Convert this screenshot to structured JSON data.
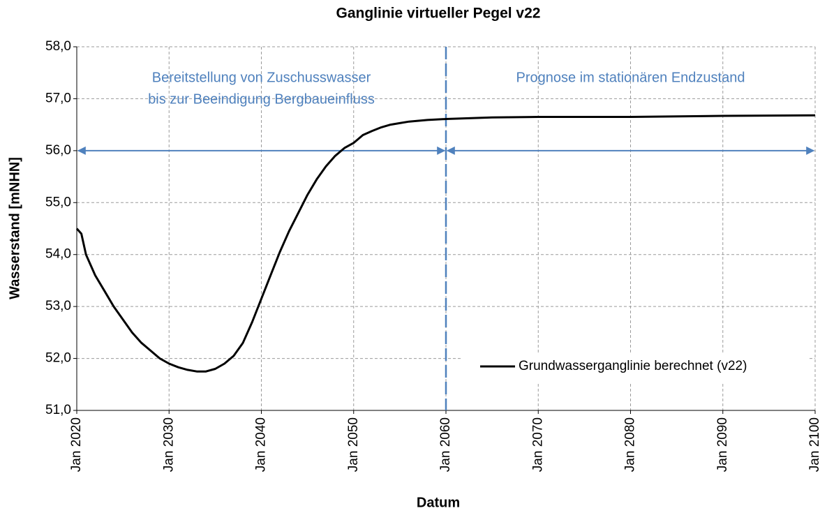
{
  "chart_data": {
    "type": "line",
    "title": "Ganglinie virtueller Pegel v22",
    "xlabel": "Datum",
    "ylabel": "Wasserstand [mNHN]",
    "x": [
      2020,
      2020.5,
      2021,
      2022,
      2023,
      2024,
      2025,
      2026,
      2027,
      2028,
      2029,
      2030,
      2031,
      2032,
      2033,
      2034,
      2035,
      2036,
      2037,
      2038,
      2039,
      2040,
      2041,
      2042,
      2043,
      2044,
      2045,
      2046,
      2047,
      2048,
      2049,
      2050,
      2051,
      2052,
      2053,
      2054,
      2055,
      2056,
      2058,
      2060,
      2065,
      2070,
      2080,
      2090,
      2100
    ],
    "series": [
      {
        "name": "Grundwasserganglinie berechnet (v22)",
        "color": "#000000",
        "values": [
          54.5,
          54.4,
          54.0,
          53.6,
          53.3,
          53.0,
          52.75,
          52.5,
          52.3,
          52.15,
          52.0,
          51.9,
          51.83,
          51.78,
          51.75,
          51.75,
          51.8,
          51.9,
          52.05,
          52.3,
          52.7,
          53.15,
          53.6,
          54.05,
          54.45,
          54.8,
          55.15,
          55.45,
          55.7,
          55.9,
          56.05,
          56.15,
          56.3,
          56.38,
          56.45,
          56.5,
          56.53,
          56.56,
          56.59,
          56.61,
          56.64,
          56.65,
          56.65,
          56.67,
          56.68
        ]
      }
    ],
    "xlim": [
      2020,
      2100
    ],
    "xticks": [
      {
        "value": 2020,
        "label": "Jan 2020"
      },
      {
        "value": 2030,
        "label": "Jan 2030"
      },
      {
        "value": 2040,
        "label": "Jan 2040"
      },
      {
        "value": 2050,
        "label": "Jan 2050"
      },
      {
        "value": 2060,
        "label": "Jan 2060"
      },
      {
        "value": 2070,
        "label": "Jan 2070"
      },
      {
        "value": 2080,
        "label": "Jan 2080"
      },
      {
        "value": 2090,
        "label": "Jan 2090"
      },
      {
        "value": 2100,
        "label": "Jan 2100"
      }
    ],
    "ylim": [
      51,
      58
    ],
    "yticks": [
      {
        "value": 51,
        "label": "51,0"
      },
      {
        "value": 52,
        "label": "52,0"
      },
      {
        "value": 53,
        "label": "53,0"
      },
      {
        "value": 54,
        "label": "54,0"
      },
      {
        "value": 55,
        "label": "55,0"
      },
      {
        "value": 56,
        "label": "56,0"
      },
      {
        "value": 57,
        "label": "57,0"
      },
      {
        "value": 58,
        "label": "58,0"
      }
    ],
    "grid": true,
    "legend": "lower right",
    "annotation_color": "#4f81bd",
    "vline": 2060,
    "arrows": [
      {
        "from": 2020,
        "to": 2060,
        "y": 56
      },
      {
        "from": 2060,
        "to": 2100,
        "y": 56
      }
    ],
    "annotations": [
      {
        "lines": [
          "Bereitstellung von Zuschusswasser",
          "bis zur Beeindigung Bergbaueinfluss"
        ],
        "from": 2020,
        "to": 2060
      },
      {
        "lines": [
          "Prognose im stationären Endzustand"
        ],
        "from": 2060,
        "to": 2100
      }
    ]
  }
}
